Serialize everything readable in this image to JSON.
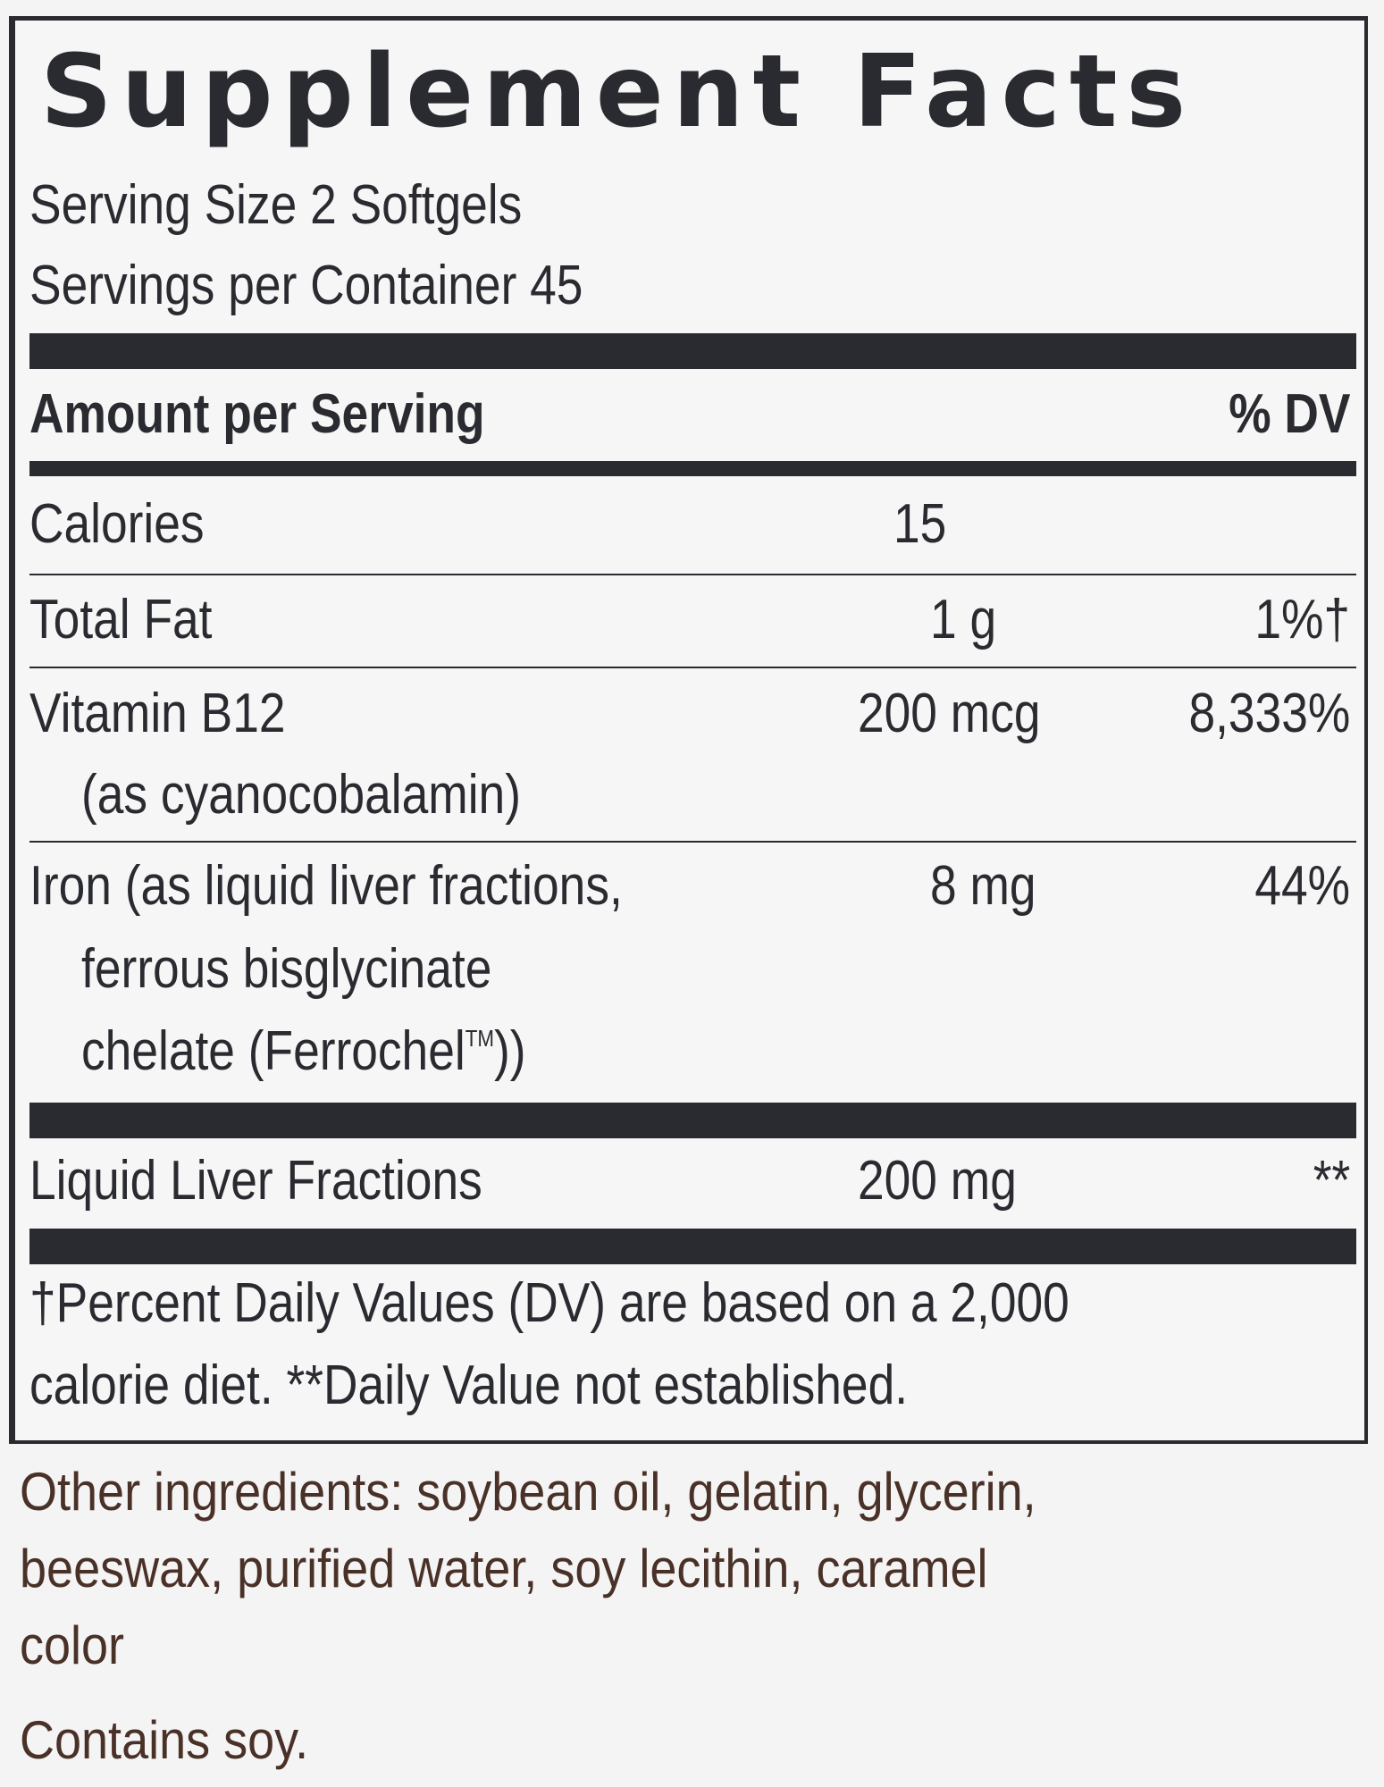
{
  "panel": {
    "title": "Supplement Facts",
    "serving_size": "Serving Size 2 Softgels",
    "servings_per_container": "Servings per Container 45",
    "header": {
      "amount_label": "Amount per Serving",
      "dv_label": "% DV"
    },
    "rows": {
      "calories": {
        "name": "Calories",
        "amount": "15",
        "dv": ""
      },
      "total_fat": {
        "name": "Total Fat",
        "amount": "1 g",
        "dv": "1%†"
      },
      "vitamin_b12": {
        "name": "Vitamin B12",
        "sub": "(as cyanocobalamin)",
        "amount": "200 mcg",
        "dv": "8,333%"
      },
      "iron": {
        "name": "Iron (as liquid liver fractions,",
        "sub1": "ferrous bisglycinate",
        "sub2_prefix": "chelate (Ferrochel",
        "sub2_tm": "TM",
        "sub2_suffix": "))",
        "amount": "8 mg",
        "dv": "44%"
      },
      "liver": {
        "name": "Liquid Liver Fractions",
        "amount": "200 mg",
        "dv": "**"
      }
    },
    "footnote_line1": "†Percent Daily Values (DV) are based on a 2,000",
    "footnote_line2": "calorie diet. **Daily Value not established."
  },
  "other": {
    "line1": "Other ingredients: soybean oil, gelatin, glycerin,",
    "line2": "beeswax, purified water, soy lecithin, caramel",
    "line3": "color",
    "contains": "Contains soy."
  },
  "colors": {
    "ink": "#2a2b30",
    "brown": "#4a3128",
    "background": "#f4f4f4"
  }
}
